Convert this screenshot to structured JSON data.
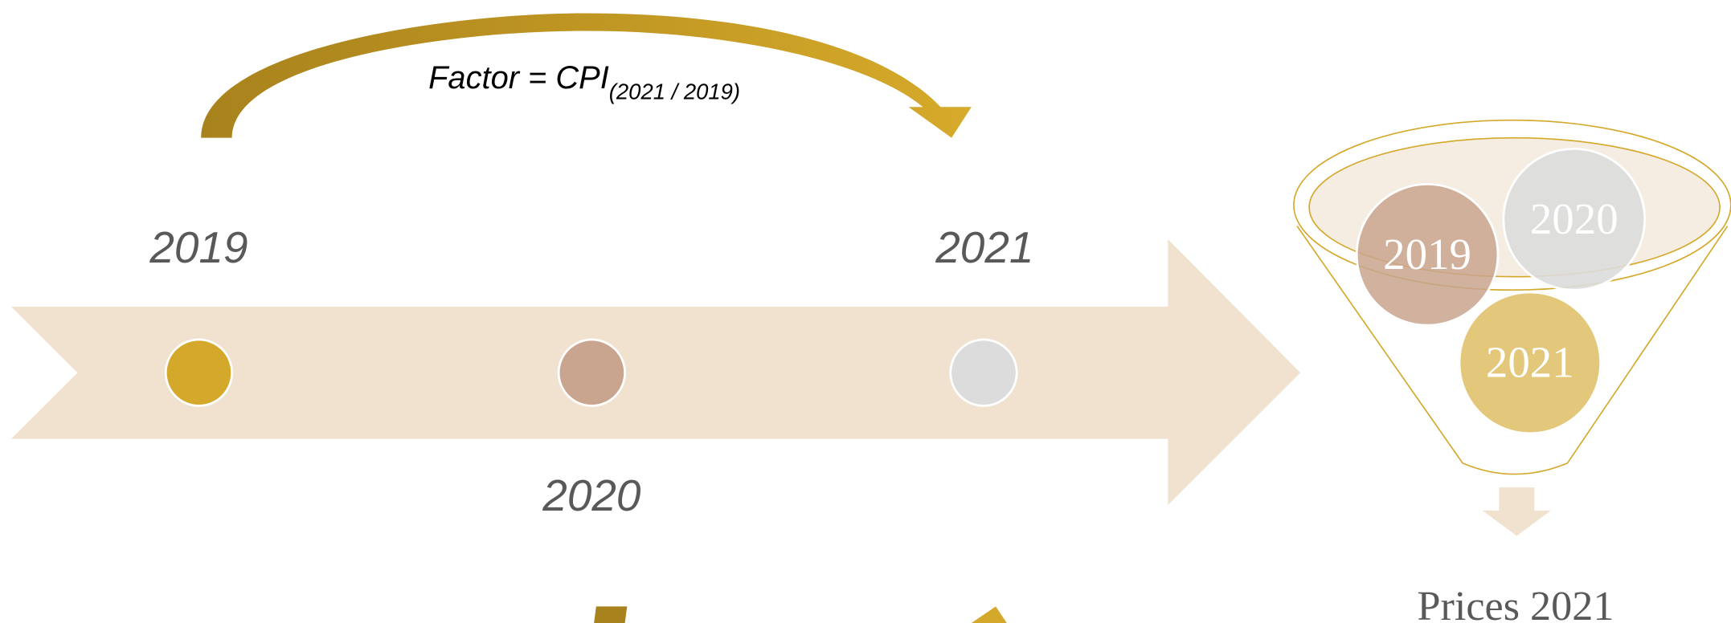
{
  "formula": {
    "text": "Factor = CPI",
    "subscript": "(2021 / 2019)"
  },
  "timeline": {
    "labels": [
      "2019",
      "2021",
      "2020"
    ]
  },
  "funnel": {
    "circles": [
      "2019",
      "2020",
      "2021"
    ],
    "output": "Prices 2021"
  }
}
